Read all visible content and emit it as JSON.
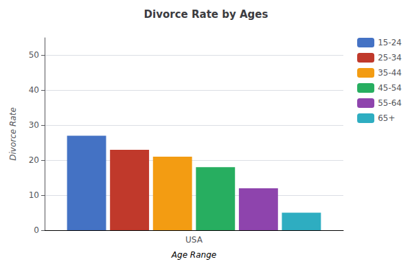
{
  "chart_data": {
    "type": "bar",
    "title": "Divorce Rate by Ages",
    "xlabel": "Age Range",
    "ylabel": "Divorce Rate",
    "categories": [
      "USA"
    ],
    "series": [
      {
        "name": "15-24",
        "color": "#4472C4",
        "values": [
          27
        ]
      },
      {
        "name": "25-34",
        "color": "#C0392B",
        "values": [
          23
        ]
      },
      {
        "name": "35-44",
        "color": "#F39C12",
        "values": [
          21
        ]
      },
      {
        "name": "45-54",
        "color": "#27AE60",
        "values": [
          18
        ]
      },
      {
        "name": "55-64",
        "color": "#8E44AD",
        "values": [
          12
        ]
      },
      {
        "name": "65+",
        "color": "#2EADC1",
        "values": [
          5
        ]
      }
    ],
    "ylim": [
      0,
      55
    ],
    "yticks": [
      0,
      10,
      20,
      30,
      40,
      50
    ],
    "grid": true,
    "legend": "upper right"
  }
}
